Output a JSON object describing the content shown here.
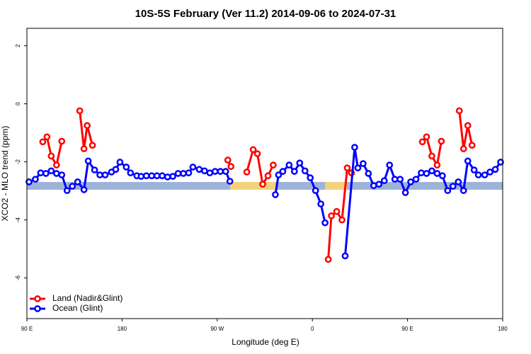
{
  "chart_data": {
    "type": "line",
    "title": "10S-5S February (Ver 11.2)   2014-09-06 to 2024-07-31",
    "xlabel": "Longitude (deg E)",
    "ylabel": "XCO2 - MLO trend (ppm)",
    "xlim": [
      90,
      540
    ],
    "xticks": [
      {
        "value": 90,
        "label": "90 E"
      },
      180,
      {
        "value": 270,
        "label": "90 W"
      },
      {
        "value": 360,
        "label": "0"
      },
      {
        "value": 450,
        "label": "90 E"
      },
      {
        "value": 540,
        "label": "180"
      }
    ],
    "ylim": [
      -7.4,
      2.6
    ],
    "yticks": [
      2,
      0,
      -2,
      -4,
      -6
    ],
    "legend": "bottom-left",
    "series": [
      {
        "name": "Land (Nadir&Glint)",
        "color": "#ff0000",
        "x": [
          105,
          109,
          113,
          118,
          123,
          null,
          140,
          144,
          147,
          152,
          null,
          280,
          283,
          null,
          298,
          304,
          308,
          313,
          318,
          323,
          null,
          375,
          378,
          383,
          388,
          393,
          397,
          null,
          464,
          468,
          473,
          478,
          482,
          null,
          499,
          503,
          507,
          511
        ],
        "values": [
          -1.31,
          -1.14,
          -1.8,
          -2.11,
          -1.29,
          null,
          -0.24,
          -1.55,
          -0.75,
          -1.43,
          null,
          -1.94,
          -2.16,
          null,
          -2.35,
          -1.58,
          -1.72,
          -2.77,
          -2.48,
          -2.11,
          null,
          -5.36,
          -3.86,
          -3.71,
          -4.0,
          -2.21,
          -2.38,
          null,
          -1.31,
          -1.14,
          -1.8,
          -2.11,
          -1.29,
          null,
          -0.24,
          -1.55,
          -0.75,
          -1.43
        ]
      },
      {
        "name": "Ocean (Glint)",
        "color": "#0000ff",
        "x": [
          92,
          98,
          103,
          108,
          113,
          118,
          123,
          128,
          133,
          138,
          144,
          148,
          154,
          159,
          164,
          170,
          174,
          178,
          184,
          188,
          194,
          198,
          203,
          208,
          213,
          218,
          223,
          228,
          233,
          238,
          243,
          247,
          253,
          258,
          263,
          268,
          273,
          278,
          282,
          null,
          325,
          328,
          332,
          338,
          343,
          348,
          353,
          358,
          363,
          368,
          372,
          null,
          391,
          400,
          403,
          408,
          413,
          418,
          423,
          428,
          433,
          438,
          443,
          448,
          453,
          458,
          463,
          468,
          473,
          478,
          483,
          488,
          493,
          498,
          503,
          507,
          513,
          517,
          523,
          528,
          533,
          538
        ],
        "values": [
          -2.69,
          -2.6,
          -2.38,
          -2.4,
          -2.31,
          -2.4,
          -2.45,
          -2.99,
          -2.84,
          -2.69,
          -2.96,
          -1.97,
          -2.28,
          -2.45,
          -2.45,
          -2.35,
          -2.26,
          -2.01,
          -2.18,
          -2.38,
          -2.48,
          -2.5,
          -2.48,
          -2.48,
          -2.48,
          -2.48,
          -2.52,
          -2.5,
          -2.4,
          -2.4,
          -2.38,
          -2.18,
          -2.26,
          -2.31,
          -2.38,
          -2.33,
          -2.33,
          -2.33,
          -2.67,
          null,
          -3.13,
          -2.45,
          -2.33,
          -2.11,
          -2.33,
          -2.04,
          -2.31,
          -2.55,
          -2.99,
          -3.45,
          -4.1,
          null,
          -5.24,
          -1.5,
          -2.21,
          -2.06,
          -2.4,
          -2.82,
          -2.77,
          -2.65,
          -2.11,
          -2.6,
          -2.6,
          -3.06,
          -2.69,
          -2.6,
          -2.38,
          -2.4,
          -2.31,
          -2.4,
          -2.48,
          -2.99,
          -2.84,
          -2.69,
          -2.99,
          -1.97,
          -2.28,
          -2.45,
          -2.45,
          -2.35,
          -2.26,
          -2.01
        ]
      }
    ]
  }
}
